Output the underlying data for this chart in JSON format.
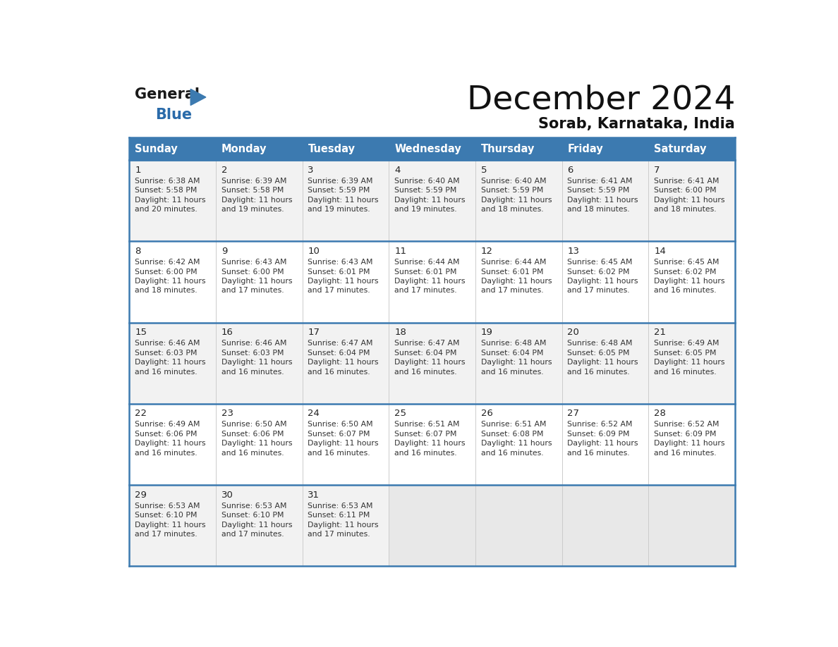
{
  "title": "December 2024",
  "subtitle": "Sorab, Karnataka, India",
  "header_bg_color": "#3c7ab0",
  "header_text_color": "#ffffff",
  "border_color": "#3c7ab0",
  "cell_bg_white": "#ffffff",
  "cell_bg_light": "#f2f2f2",
  "cell_bg_empty": "#e8e8e8",
  "text_color": "#333333",
  "day_num_color": "#222222",
  "logo_black": "#1a1a1a",
  "logo_blue": "#2a6baa",
  "logo_triangle": "#3c7ab0",
  "days_of_week": [
    "Sunday",
    "Monday",
    "Tuesday",
    "Wednesday",
    "Thursday",
    "Friday",
    "Saturday"
  ],
  "calendar": [
    [
      {
        "day": "1",
        "sunrise": "6:38 AM",
        "sunset": "5:58 PM",
        "dl1": "Daylight: 11 hours",
        "dl2": "and 20 minutes."
      },
      {
        "day": "2",
        "sunrise": "6:39 AM",
        "sunset": "5:58 PM",
        "dl1": "Daylight: 11 hours",
        "dl2": "and 19 minutes."
      },
      {
        "day": "3",
        "sunrise": "6:39 AM",
        "sunset": "5:59 PM",
        "dl1": "Daylight: 11 hours",
        "dl2": "and 19 minutes."
      },
      {
        "day": "4",
        "sunrise": "6:40 AM",
        "sunset": "5:59 PM",
        "dl1": "Daylight: 11 hours",
        "dl2": "and 19 minutes."
      },
      {
        "day": "5",
        "sunrise": "6:40 AM",
        "sunset": "5:59 PM",
        "dl1": "Daylight: 11 hours",
        "dl2": "and 18 minutes."
      },
      {
        "day": "6",
        "sunrise": "6:41 AM",
        "sunset": "5:59 PM",
        "dl1": "Daylight: 11 hours",
        "dl2": "and 18 minutes."
      },
      {
        "day": "7",
        "sunrise": "6:41 AM",
        "sunset": "6:00 PM",
        "dl1": "Daylight: 11 hours",
        "dl2": "and 18 minutes."
      }
    ],
    [
      {
        "day": "8",
        "sunrise": "6:42 AM",
        "sunset": "6:00 PM",
        "dl1": "Daylight: 11 hours",
        "dl2": "and 18 minutes."
      },
      {
        "day": "9",
        "sunrise": "6:43 AM",
        "sunset": "6:00 PM",
        "dl1": "Daylight: 11 hours",
        "dl2": "and 17 minutes."
      },
      {
        "day": "10",
        "sunrise": "6:43 AM",
        "sunset": "6:01 PM",
        "dl1": "Daylight: 11 hours",
        "dl2": "and 17 minutes."
      },
      {
        "day": "11",
        "sunrise": "6:44 AM",
        "sunset": "6:01 PM",
        "dl1": "Daylight: 11 hours",
        "dl2": "and 17 minutes."
      },
      {
        "day": "12",
        "sunrise": "6:44 AM",
        "sunset": "6:01 PM",
        "dl1": "Daylight: 11 hours",
        "dl2": "and 17 minutes."
      },
      {
        "day": "13",
        "sunrise": "6:45 AM",
        "sunset": "6:02 PM",
        "dl1": "Daylight: 11 hours",
        "dl2": "and 17 minutes."
      },
      {
        "day": "14",
        "sunrise": "6:45 AM",
        "sunset": "6:02 PM",
        "dl1": "Daylight: 11 hours",
        "dl2": "and 16 minutes."
      }
    ],
    [
      {
        "day": "15",
        "sunrise": "6:46 AM",
        "sunset": "6:03 PM",
        "dl1": "Daylight: 11 hours",
        "dl2": "and 16 minutes."
      },
      {
        "day": "16",
        "sunrise": "6:46 AM",
        "sunset": "6:03 PM",
        "dl1": "Daylight: 11 hours",
        "dl2": "and 16 minutes."
      },
      {
        "day": "17",
        "sunrise": "6:47 AM",
        "sunset": "6:04 PM",
        "dl1": "Daylight: 11 hours",
        "dl2": "and 16 minutes."
      },
      {
        "day": "18",
        "sunrise": "6:47 AM",
        "sunset": "6:04 PM",
        "dl1": "Daylight: 11 hours",
        "dl2": "and 16 minutes."
      },
      {
        "day": "19",
        "sunrise": "6:48 AM",
        "sunset": "6:04 PM",
        "dl1": "Daylight: 11 hours",
        "dl2": "and 16 minutes."
      },
      {
        "day": "20",
        "sunrise": "6:48 AM",
        "sunset": "6:05 PM",
        "dl1": "Daylight: 11 hours",
        "dl2": "and 16 minutes."
      },
      {
        "day": "21",
        "sunrise": "6:49 AM",
        "sunset": "6:05 PM",
        "dl1": "Daylight: 11 hours",
        "dl2": "and 16 minutes."
      }
    ],
    [
      {
        "day": "22",
        "sunrise": "6:49 AM",
        "sunset": "6:06 PM",
        "dl1": "Daylight: 11 hours",
        "dl2": "and 16 minutes."
      },
      {
        "day": "23",
        "sunrise": "6:50 AM",
        "sunset": "6:06 PM",
        "dl1": "Daylight: 11 hours",
        "dl2": "and 16 minutes."
      },
      {
        "day": "24",
        "sunrise": "6:50 AM",
        "sunset": "6:07 PM",
        "dl1": "Daylight: 11 hours",
        "dl2": "and 16 minutes."
      },
      {
        "day": "25",
        "sunrise": "6:51 AM",
        "sunset": "6:07 PM",
        "dl1": "Daylight: 11 hours",
        "dl2": "and 16 minutes."
      },
      {
        "day": "26",
        "sunrise": "6:51 AM",
        "sunset": "6:08 PM",
        "dl1": "Daylight: 11 hours",
        "dl2": "and 16 minutes."
      },
      {
        "day": "27",
        "sunrise": "6:52 AM",
        "sunset": "6:09 PM",
        "dl1": "Daylight: 11 hours",
        "dl2": "and 16 minutes."
      },
      {
        "day": "28",
        "sunrise": "6:52 AM",
        "sunset": "6:09 PM",
        "dl1": "Daylight: 11 hours",
        "dl2": "and 16 minutes."
      }
    ],
    [
      {
        "day": "29",
        "sunrise": "6:53 AM",
        "sunset": "6:10 PM",
        "dl1": "Daylight: 11 hours",
        "dl2": "and 17 minutes."
      },
      {
        "day": "30",
        "sunrise": "6:53 AM",
        "sunset": "6:10 PM",
        "dl1": "Daylight: 11 hours",
        "dl2": "and 17 minutes."
      },
      {
        "day": "31",
        "sunrise": "6:53 AM",
        "sunset": "6:11 PM",
        "dl1": "Daylight: 11 hours",
        "dl2": "and 17 minutes."
      },
      null,
      null,
      null,
      null
    ]
  ]
}
